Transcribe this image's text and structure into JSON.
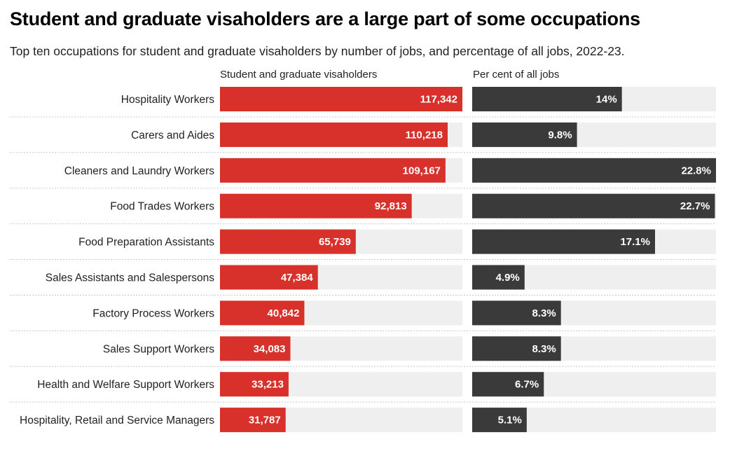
{
  "title": "Student and graduate visaholders are a large part of some occupations",
  "subtitle": "Top ten occupations for student and graduate visaholders by number of jobs, and percentage of all jobs, 2022-23.",
  "colors": {
    "visaholders_bar": "#d8302b",
    "percent_bar": "#3a3a3a",
    "track": "#efefef",
    "separator": "#c8c8c8"
  },
  "chart_data": {
    "type": "bar",
    "orientation": "horizontal",
    "title": "Student and graduate visaholders are a large part of some occupations",
    "subtitle": "Top ten occupations for student and graduate visaholders by number of jobs, and percentage of all jobs, 2022-23.",
    "categories": [
      "Hospitality Workers",
      "Carers and Aides",
      "Cleaners and Laundry Workers",
      "Food Trades Workers",
      "Food Preparation Assistants",
      "Sales Assistants and Salespersons",
      "Factory Process Workers",
      "Sales Support Workers",
      "Health and Welfare Support Workers",
      "Hospitality, Retail and Service Managers"
    ],
    "series": [
      {
        "name": "Student and graduate visaholders",
        "values": [
          117342,
          110218,
          109167,
          92813,
          65739,
          47384,
          40842,
          34083,
          33213,
          31787
        ],
        "labels": [
          "117,342",
          "110,218",
          "109,167",
          "92,813",
          "65,739",
          "47,384",
          "40,842",
          "34,083",
          "33,213",
          "31,787"
        ],
        "max": 117342
      },
      {
        "name": "Per cent of all jobs",
        "values": [
          14,
          9.8,
          22.8,
          22.7,
          17.1,
          4.9,
          8.3,
          8.3,
          6.7,
          5.1
        ],
        "labels": [
          "14%",
          "9.8%",
          "22.8%",
          "22.7%",
          "17.1%",
          "4.9%",
          "8.3%",
          "8.3%",
          "6.7%",
          "5.1%"
        ],
        "max": 22.8
      }
    ]
  }
}
